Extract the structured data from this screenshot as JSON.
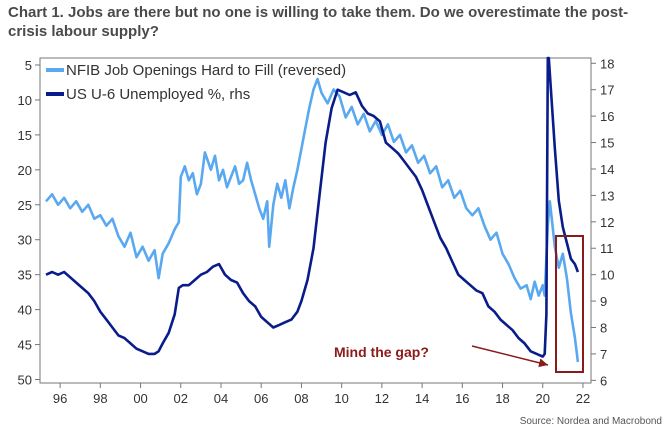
{
  "chart_data": {
    "type": "line",
    "title": "Chart 1. Jobs are there but no one is willing to take them. Do we overestimate the post-crisis labour supply?",
    "x_ticks": [
      "96",
      "98",
      "00",
      "02",
      "04",
      "06",
      "08",
      "10",
      "12",
      "14",
      "16",
      "18",
      "20",
      "22"
    ],
    "x_tick_years": [
      1996,
      1998,
      2000,
      2002,
      2004,
      2006,
      2008,
      2010,
      2012,
      2014,
      2016,
      2018,
      2020,
      2022
    ],
    "xlim": [
      1995,
      2022.4
    ],
    "y_left": {
      "ticks": [
        5,
        10,
        15,
        20,
        25,
        30,
        35,
        40,
        45,
        50
      ],
      "lim": [
        4,
        50.5
      ],
      "reversed": true
    },
    "y_right": {
      "ticks": [
        6,
        7,
        8,
        9,
        10,
        11,
        12,
        13,
        14,
        15,
        16,
        17,
        18
      ],
      "lim": [
        5.9,
        18.2
      ]
    },
    "legend": {
      "position": "top-left"
    },
    "grid": false,
    "series": [
      {
        "name": "NFIB Job Openings Hard to Fill (reversed)",
        "axis": "left",
        "color": "#5aa9f0",
        "points": [
          [
            1995.3,
            24.5
          ],
          [
            1995.6,
            23.5
          ],
          [
            1995.9,
            25.0
          ],
          [
            1996.2,
            24.0
          ],
          [
            1996.5,
            25.5
          ],
          [
            1996.8,
            24.5
          ],
          [
            1997.1,
            26.0
          ],
          [
            1997.4,
            25.0
          ],
          [
            1997.7,
            27.0
          ],
          [
            1998.0,
            26.5
          ],
          [
            1998.3,
            28.0
          ],
          [
            1998.6,
            27.0
          ],
          [
            1998.9,
            29.5
          ],
          [
            1999.2,
            31.0
          ],
          [
            1999.5,
            29.0
          ],
          [
            1999.8,
            32.5
          ],
          [
            2000.1,
            31.0
          ],
          [
            2000.4,
            33.0
          ],
          [
            2000.7,
            31.5
          ],
          [
            2000.9,
            35.5
          ],
          [
            2001.1,
            32.0
          ],
          [
            2001.4,
            30.5
          ],
          [
            2001.7,
            28.5
          ],
          [
            2001.9,
            27.5
          ],
          [
            2002.0,
            21.0
          ],
          [
            2002.2,
            19.5
          ],
          [
            2002.4,
            21.5
          ],
          [
            2002.6,
            20.5
          ],
          [
            2002.8,
            23.5
          ],
          [
            2003.0,
            22.0
          ],
          [
            2003.2,
            17.5
          ],
          [
            2003.5,
            20.0
          ],
          [
            2003.7,
            18.0
          ],
          [
            2003.9,
            21.5
          ],
          [
            2004.1,
            20.0
          ],
          [
            2004.3,
            22.5
          ],
          [
            2004.5,
            21.0
          ],
          [
            2004.7,
            19.5
          ],
          [
            2004.9,
            22.0
          ],
          [
            2005.1,
            21.5
          ],
          [
            2005.3,
            19.0
          ],
          [
            2005.5,
            21.5
          ],
          [
            2005.7,
            23.5
          ],
          [
            2005.9,
            25.5
          ],
          [
            2006.1,
            27.0
          ],
          [
            2006.3,
            24.5
          ],
          [
            2006.4,
            31.0
          ],
          [
            2006.6,
            25.0
          ],
          [
            2006.8,
            22.0
          ],
          [
            2007.0,
            24.0
          ],
          [
            2007.2,
            21.5
          ],
          [
            2007.4,
            25.5
          ],
          [
            2007.6,
            22.5
          ],
          [
            2007.8,
            20.0
          ],
          [
            2008.0,
            17.0
          ],
          [
            2008.2,
            14.0
          ],
          [
            2008.4,
            11.0
          ],
          [
            2008.6,
            8.5
          ],
          [
            2008.8,
            7.0
          ],
          [
            2009.0,
            9.0
          ],
          [
            2009.3,
            10.5
          ],
          [
            2009.6,
            8.5
          ],
          [
            2009.9,
            9.5
          ],
          [
            2010.2,
            12.5
          ],
          [
            2010.5,
            11.0
          ],
          [
            2010.8,
            13.5
          ],
          [
            2011.1,
            12.0
          ],
          [
            2011.4,
            14.5
          ],
          [
            2011.7,
            13.0
          ],
          [
            2012.0,
            15.0
          ],
          [
            2012.3,
            13.5
          ],
          [
            2012.6,
            16.0
          ],
          [
            2012.9,
            15.0
          ],
          [
            2013.2,
            17.5
          ],
          [
            2013.5,
            16.5
          ],
          [
            2013.8,
            19.0
          ],
          [
            2014.1,
            18.0
          ],
          [
            2014.4,
            20.5
          ],
          [
            2014.7,
            19.5
          ],
          [
            2015.0,
            22.5
          ],
          [
            2015.3,
            21.5
          ],
          [
            2015.6,
            24.0
          ],
          [
            2015.9,
            23.0
          ],
          [
            2016.2,
            25.5
          ],
          [
            2016.5,
            26.5
          ],
          [
            2016.8,
            25.5
          ],
          [
            2017.1,
            28.0
          ],
          [
            2017.4,
            30.0
          ],
          [
            2017.7,
            29.0
          ],
          [
            2018.0,
            32.0
          ],
          [
            2018.3,
            33.5
          ],
          [
            2018.6,
            35.5
          ],
          [
            2018.9,
            37.0
          ],
          [
            2019.2,
            36.5
          ],
          [
            2019.4,
            38.5
          ],
          [
            2019.6,
            36.0
          ],
          [
            2019.8,
            38.0
          ],
          [
            2020.0,
            36.5
          ],
          [
            2020.1,
            38.0
          ],
          [
            2020.25,
            28.0
          ],
          [
            2020.35,
            24.5
          ],
          [
            2020.45,
            27.0
          ],
          [
            2020.6,
            31.0
          ],
          [
            2020.8,
            34.0
          ],
          [
            2021.0,
            32.0
          ],
          [
            2021.2,
            35.5
          ],
          [
            2021.4,
            40.5
          ],
          [
            2021.6,
            44.0
          ],
          [
            2021.75,
            47.5
          ]
        ]
      },
      {
        "name": "US U-6 Unemployed %, rhs",
        "axis": "right",
        "color": "#0a1c8a",
        "points": [
          [
            1995.3,
            10.0
          ],
          [
            1995.6,
            10.1
          ],
          [
            1995.9,
            10.0
          ],
          [
            1996.2,
            10.1
          ],
          [
            1996.5,
            9.9
          ],
          [
            1996.8,
            9.7
          ],
          [
            1997.1,
            9.5
          ],
          [
            1997.4,
            9.3
          ],
          [
            1997.7,
            9.0
          ],
          [
            1998.0,
            8.6
          ],
          [
            1998.3,
            8.3
          ],
          [
            1998.6,
            8.0
          ],
          [
            1998.9,
            7.7
          ],
          [
            1999.2,
            7.6
          ],
          [
            1999.5,
            7.4
          ],
          [
            1999.8,
            7.2
          ],
          [
            2000.1,
            7.1
          ],
          [
            2000.4,
            7.0
          ],
          [
            2000.7,
            7.0
          ],
          [
            2000.9,
            7.1
          ],
          [
            2001.1,
            7.4
          ],
          [
            2001.4,
            7.8
          ],
          [
            2001.7,
            8.5
          ],
          [
            2001.9,
            9.5
          ],
          [
            2002.1,
            9.6
          ],
          [
            2002.4,
            9.6
          ],
          [
            2002.7,
            9.8
          ],
          [
            2003.0,
            10.0
          ],
          [
            2003.3,
            10.1
          ],
          [
            2003.6,
            10.3
          ],
          [
            2003.9,
            10.4
          ],
          [
            2004.2,
            10.0
          ],
          [
            2004.5,
            9.8
          ],
          [
            2004.8,
            9.7
          ],
          [
            2005.1,
            9.3
          ],
          [
            2005.4,
            9.0
          ],
          [
            2005.7,
            8.8
          ],
          [
            2006.0,
            8.4
          ],
          [
            2006.3,
            8.2
          ],
          [
            2006.6,
            8.0
          ],
          [
            2006.9,
            8.1
          ],
          [
            2007.2,
            8.2
          ],
          [
            2007.5,
            8.3
          ],
          [
            2007.8,
            8.6
          ],
          [
            2008.0,
            9.0
          ],
          [
            2008.3,
            9.8
          ],
          [
            2008.6,
            11.0
          ],
          [
            2008.9,
            13.0
          ],
          [
            2009.2,
            15.0
          ],
          [
            2009.5,
            16.3
          ],
          [
            2009.8,
            17.0
          ],
          [
            2010.1,
            16.9
          ],
          [
            2010.4,
            16.8
          ],
          [
            2010.7,
            16.9
          ],
          [
            2011.0,
            16.4
          ],
          [
            2011.3,
            16.1
          ],
          [
            2011.6,
            16.0
          ],
          [
            2011.9,
            15.8
          ],
          [
            2012.2,
            15.0
          ],
          [
            2012.5,
            14.8
          ],
          [
            2012.8,
            14.6
          ],
          [
            2013.1,
            14.3
          ],
          [
            2013.4,
            14.0
          ],
          [
            2013.7,
            13.7
          ],
          [
            2014.0,
            13.2
          ],
          [
            2014.3,
            12.6
          ],
          [
            2014.6,
            12.0
          ],
          [
            2014.9,
            11.4
          ],
          [
            2015.2,
            11.0
          ],
          [
            2015.5,
            10.5
          ],
          [
            2015.8,
            10.0
          ],
          [
            2016.1,
            9.8
          ],
          [
            2016.4,
            9.6
          ],
          [
            2016.7,
            9.4
          ],
          [
            2017.0,
            9.3
          ],
          [
            2017.3,
            8.8
          ],
          [
            2017.6,
            8.6
          ],
          [
            2017.9,
            8.3
          ],
          [
            2018.2,
            8.1
          ],
          [
            2018.5,
            7.9
          ],
          [
            2018.8,
            7.6
          ],
          [
            2019.1,
            7.4
          ],
          [
            2019.4,
            7.1
          ],
          [
            2019.7,
            7.0
          ],
          [
            2020.0,
            6.9
          ],
          [
            2020.1,
            7.0
          ],
          [
            2020.18,
            8.5
          ],
          [
            2020.25,
            18.2
          ],
          [
            2020.3,
            18.2
          ],
          [
            2020.45,
            16.5
          ],
          [
            2020.6,
            14.8
          ],
          [
            2020.8,
            12.8
          ],
          [
            2021.0,
            11.8
          ],
          [
            2021.2,
            11.2
          ],
          [
            2021.4,
            10.6
          ],
          [
            2021.6,
            10.4
          ],
          [
            2021.75,
            10.1
          ]
        ]
      }
    ],
    "annotation": {
      "text": "Mind the gap?"
    },
    "source": "Source: Nordea and Macrobond"
  }
}
